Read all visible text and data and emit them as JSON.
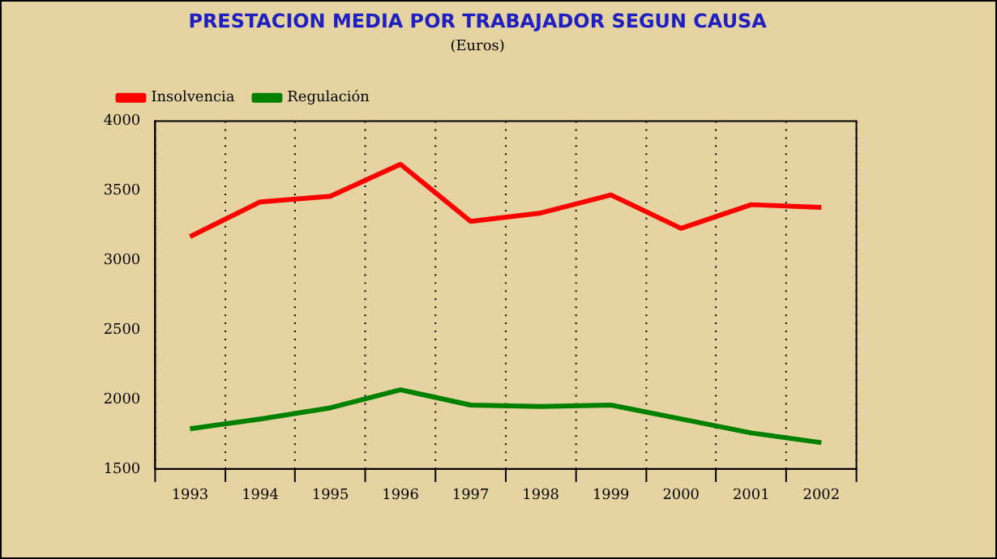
{
  "chart_data": {
    "type": "line",
    "title": "PRESTACION MEDIA POR TRABAJADOR SEGUN CAUSA",
    "subtitle": "(Euros)",
    "categories": [
      "1993",
      "1994",
      "1995",
      "1996",
      "1997",
      "1998",
      "1999",
      "2000",
      "2001",
      "2002"
    ],
    "series": [
      {
        "name": "Insolvencia",
        "color": "#ff0000",
        "values": [
          3170,
          3420,
          3460,
          3690,
          3280,
          3340,
          3470,
          3230,
          3400,
          3380
        ]
      },
      {
        "name": "Regulación",
        "color": "#008000",
        "values": [
          1790,
          1860,
          1940,
          2070,
          1960,
          1950,
          1960,
          1860,
          1760,
          1690
        ]
      }
    ],
    "ylim": [
      1500,
      4000
    ],
    "yticks": [
      1500,
      2000,
      2500,
      3000,
      3500,
      4000
    ],
    "grid": "x",
    "legend": "top left",
    "marker": "none",
    "line_style": "solid"
  }
}
